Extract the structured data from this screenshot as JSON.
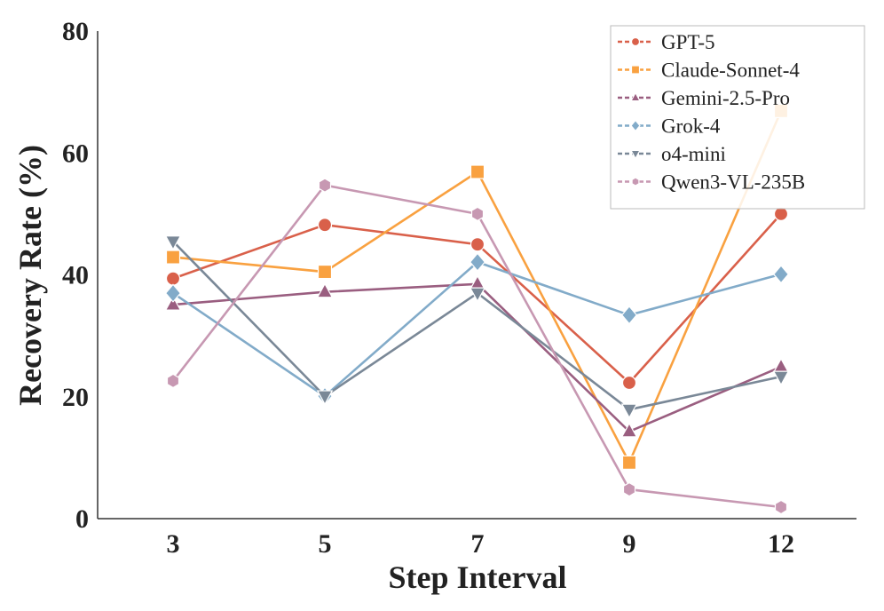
{
  "chart_data": {
    "type": "line",
    "title": "",
    "xlabel": "Step Interval",
    "ylabel": "Recovery Rate (%)",
    "categories": [
      "3",
      "5",
      "7",
      "9",
      "12"
    ],
    "ylim": [
      0,
      80
    ],
    "yticks": [
      "0",
      "20",
      "40",
      "60",
      "80"
    ],
    "grid": false,
    "legend_position": "top-right",
    "series": [
      {
        "name": "GPT-5",
        "color": "#d9604a",
        "marker": "circle",
        "values": [
          39.4,
          48.2,
          45.0,
          22.3,
          50.0
        ]
      },
      {
        "name": "Claude-Sonnet-4",
        "color": "#f9a140",
        "marker": "square",
        "values": [
          42.9,
          40.5,
          56.9,
          9.2,
          66.9
        ]
      },
      {
        "name": "Gemini-2.5-Pro",
        "color": "#9a5e80",
        "marker": "triangle-up",
        "values": [
          35.1,
          37.2,
          38.5,
          14.3,
          24.9
        ]
      },
      {
        "name": "Grok-4",
        "color": "#82abc9",
        "marker": "diamond",
        "values": [
          37.0,
          20.1,
          42.1,
          33.4,
          40.1
        ]
      },
      {
        "name": "o4-mini",
        "color": "#7a8897",
        "marker": "triangle-down",
        "values": [
          45.5,
          20.1,
          37.0,
          17.9,
          23.3
        ]
      },
      {
        "name": "Qwen3-VL-235B",
        "color": "#c798b2",
        "marker": "hexagon",
        "values": [
          22.6,
          54.7,
          50.0,
          4.8,
          1.9
        ]
      }
    ]
  }
}
